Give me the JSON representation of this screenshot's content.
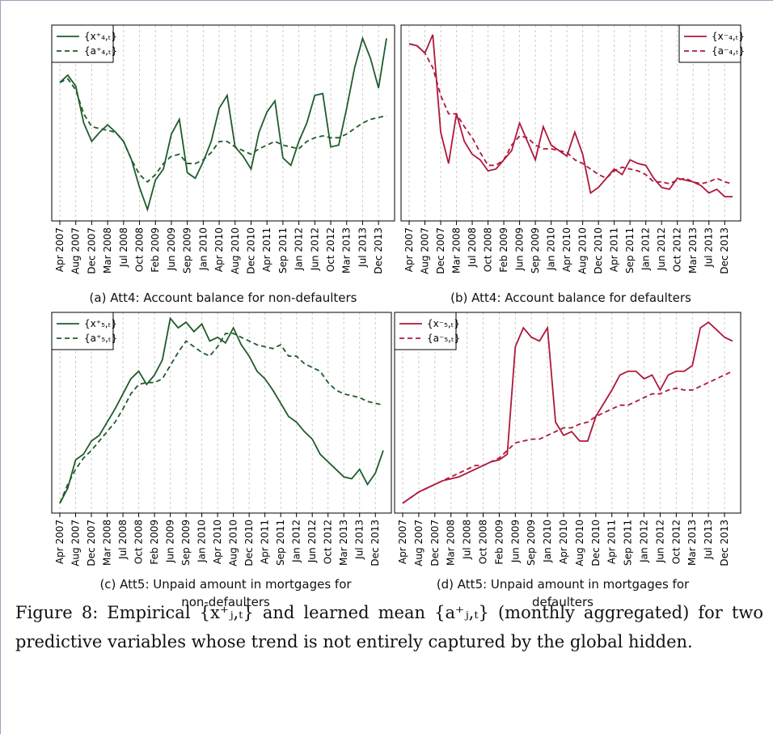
{
  "chart_data": [
    {
      "type": "line",
      "title": "(a) Att4: Account balance for non-defaulters",
      "categories": [
        "Apr 2007",
        null,
        "Aug 2007",
        null,
        "Dec 2007",
        null,
        "Mar 2008",
        null,
        "Jul 2008",
        null,
        "Oct 2008",
        null,
        "Feb 2009",
        null,
        "Jun 2009",
        null,
        "Sep 2009",
        null,
        "Jan 2010",
        null,
        "Apr 2010",
        null,
        "Aug 2010",
        null,
        "Dec 2010",
        null,
        "Apr 2011",
        null,
        "Sep 2011",
        null,
        "Jan 2012",
        null,
        "Jun 2012",
        null,
        "Oct 2012",
        null,
        "Mar 2013",
        null,
        "Jul 2013",
        null,
        "Dec 2013",
        null
      ],
      "series": [
        {
          "name": "{x⁺₄,ₜ}",
          "color": "#1f5c2a",
          "line_style": "solid",
          "values": [
            72,
            76,
            70,
            50,
            40,
            45,
            49,
            45,
            40,
            30,
            15,
            3,
            19,
            25,
            44,
            52,
            23,
            20,
            29,
            40,
            58,
            65,
            37,
            32,
            25,
            45,
            56,
            62,
            31,
            27,
            40,
            50,
            65,
            66,
            37,
            38,
            58,
            80,
            96,
            85,
            69,
            96
          ]
        },
        {
          "name": "{a⁺₄,ₜ}",
          "color": "#1f5c2a",
          "line_style": "dashed",
          "values": [
            72,
            74,
            68,
            55,
            48,
            47,
            46,
            45,
            40,
            30,
            22,
            18,
            22,
            28,
            32,
            33,
            28,
            28,
            30,
            34,
            40,
            40,
            37,
            35,
            33,
            36,
            38,
            40,
            38,
            37,
            36,
            40,
            42,
            43,
            42,
            42,
            44,
            47,
            50,
            52,
            53,
            54
          ]
        }
      ],
      "ylim": [
        0,
        100
      ],
      "grid": true,
      "legend": "upper left"
    },
    {
      "type": "line",
      "title": "(b) Att4: Account balance for defaulters",
      "categories": [
        "Apr 2007",
        null,
        "Aug 2007",
        null,
        "Dec 2007",
        null,
        "Mar 2008",
        null,
        "Jul 2008",
        null,
        "Oct 2008",
        null,
        "Feb 2009",
        null,
        "Jun 2009",
        null,
        "Sep 2009",
        null,
        "Jan 2010",
        null,
        "Apr 2010",
        null,
        "Aug 2010",
        null,
        "Dec 2010",
        null,
        "Apr 2011",
        null,
        "Sep 2011",
        null,
        "Jan 2012",
        null,
        "Jun 2012",
        null,
        "Oct 2012",
        null,
        "Mar 2013",
        null,
        "Jul 2013",
        null,
        "Dec 2013",
        null
      ],
      "series": [
        {
          "name": "{x⁻₄,ₜ}",
          "color": "#b0173a",
          "line_style": "solid",
          "values": [
            93,
            92,
            88,
            98,
            45,
            28,
            55,
            40,
            33,
            30,
            24,
            25,
            30,
            35,
            50,
            40,
            30,
            48,
            38,
            35,
            32,
            45,
            33,
            12,
            15,
            20,
            25,
            22,
            30,
            28,
            27,
            20,
            15,
            14,
            20,
            19,
            18,
            16,
            12,
            14,
            10,
            10
          ]
        },
        {
          "name": "{a⁻₄,ₜ}",
          "color": "#b0173a",
          "line_style": "dashed",
          "values": [
            93,
            92,
            88,
            80,
            65,
            55,
            55,
            48,
            42,
            34,
            27,
            27,
            30,
            38,
            43,
            42,
            38,
            36,
            36,
            35,
            34,
            30,
            28,
            25,
            22,
            20,
            24,
            26,
            25,
            24,
            22,
            18,
            18,
            17,
            19,
            20,
            18,
            17,
            18,
            20,
            18,
            17
          ]
        }
      ],
      "ylim": [
        0,
        100
      ],
      "grid": true,
      "legend": "upper right"
    },
    {
      "type": "line",
      "title": "(c) Att5: Unpaid amount in mortgages for non-defaulters",
      "categories": [
        "Apr 2007",
        null,
        "Aug 2007",
        null,
        "Dec 2007",
        null,
        "Mar 2008",
        null,
        "Jul 2008",
        null,
        "Oct 2008",
        null,
        "Feb 2009",
        null,
        "Jun 2009",
        null,
        "Sep 2009",
        null,
        "Jan 2010",
        null,
        "Apr 2010",
        null,
        "Aug 2010",
        null,
        "Dec 2010",
        null,
        "Apr 2011",
        null,
        "Sep 2011",
        null,
        "Jan 2012",
        null,
        "Jun 2012",
        null,
        "Oct 2012",
        null,
        "Mar 2013",
        null,
        "Jul 2013",
        null,
        "Dec 2013",
        null
      ],
      "series": [
        {
          "name": "{x⁺₅,ₜ}",
          "color": "#1f5c2a",
          "line_style": "solid",
          "values": [
            2,
            10,
            25,
            28,
            35,
            38,
            45,
            52,
            60,
            68,
            72,
            65,
            70,
            78,
            100,
            95,
            98,
            93,
            97,
            88,
            90,
            87,
            95,
            86,
            80,
            72,
            68,
            62,
            55,
            48,
            45,
            40,
            36,
            28,
            24,
            20,
            16,
            15,
            20,
            12,
            18,
            30
          ]
        },
        {
          "name": "{a⁺₅,ₜ}",
          "color": "#1f5c2a",
          "line_style": "dashed",
          "values": [
            2,
            12,
            20,
            26,
            30,
            35,
            40,
            45,
            52,
            60,
            65,
            66,
            66,
            68,
            75,
            82,
            88,
            85,
            82,
            80,
            85,
            92,
            92,
            90,
            88,
            86,
            85,
            84,
            86,
            80,
            80,
            76,
            74,
            72,
            66,
            62,
            60,
            59,
            58,
            56,
            55,
            54
          ]
        }
      ],
      "ylim": [
        0,
        100
      ],
      "grid": true,
      "legend": "upper left"
    },
    {
      "type": "line",
      "title": "(d) Att5: Unpaid amount in mortgages for defaulters",
      "categories": [
        "Apr 2007",
        null,
        "Aug 2007",
        null,
        "Dec 2007",
        null,
        "Mar 2008",
        null,
        "Jul 2008",
        null,
        "Oct 2008",
        null,
        "Feb 2009",
        null,
        "Jun 2009",
        null,
        "Sep 2009",
        null,
        "Jan 2010",
        null,
        "Apr 2010",
        null,
        "Aug 2010",
        null,
        "Dec 2010",
        null,
        "Apr 2011",
        null,
        "Sep 2011",
        null,
        "Jan 2012",
        null,
        "Jun 2012",
        null,
        "Oct 2012",
        null,
        "Mar 2013",
        null,
        "Jul 2013",
        null,
        "Dec 2013",
        null
      ],
      "series": [
        {
          "name": "{x⁻₅,ₜ}",
          "color": "#b0173a",
          "line_style": "solid",
          "values": [
            2,
            5,
            8,
            10,
            12,
            14,
            15,
            16,
            18,
            20,
            22,
            24,
            25,
            28,
            85,
            95,
            90,
            88,
            95,
            45,
            38,
            40,
            35,
            35,
            48,
            55,
            62,
            70,
            72,
            72,
            68,
            70,
            62,
            70,
            72,
            72,
            75,
            95,
            98,
            94,
            90,
            88
          ]
        },
        {
          "name": "{a⁻₅,ₜ}",
          "color": "#b0173a",
          "line_style": "dashed",
          "values": [
            2,
            5,
            8,
            10,
            12,
            14,
            16,
            18,
            20,
            22,
            22,
            24,
            26,
            30,
            34,
            35,
            36,
            36,
            38,
            40,
            42,
            42,
            44,
            45,
            48,
            50,
            52,
            54,
            54,
            56,
            58,
            60,
            60,
            62,
            63,
            62,
            62,
            64,
            66,
            68,
            70,
            72
          ]
        }
      ],
      "ylim": [
        0,
        100
      ],
      "grid": true,
      "legend": "upper left"
    }
  ],
  "caption": "Figure 8: Empirical {x⁺ⱼ,ₜ} and learned mean {a⁺ⱼ,ₜ} (monthly aggregated) for two predictive variables whose trend is not entirely captured by the global hidden."
}
